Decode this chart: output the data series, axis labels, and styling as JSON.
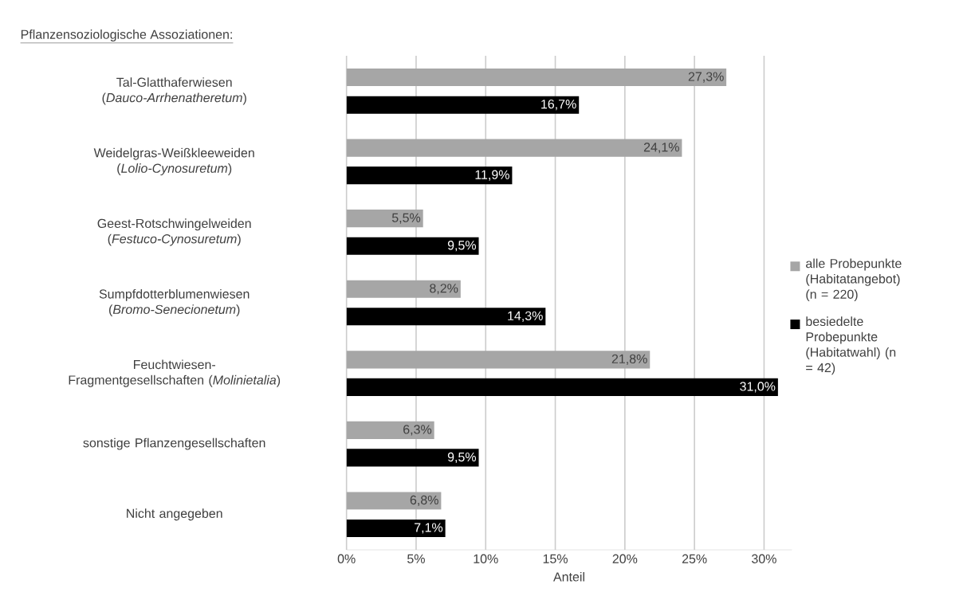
{
  "chart_data": {
    "type": "bar",
    "orientation": "horizontal",
    "title": "Pflanzensoziologische Assoziationen:",
    "xlabel": "Anteil",
    "categories": [
      "Tal-Glatthaferwiesen (*Dauco-Arrhenatheretum*)",
      "Weidelgras-Weißkleeweiden (*Lolio-Cynosuretum*)",
      "Geest-Rotschwingelweiden (*Festuco-Cynosuretum*)",
      "Sumpfdotterblumenwiesen (*Bromo-Senecionetum*)",
      "Feuchtwiesen-Fragmentgesellschaften (*Molinietalia*)",
      "sonstige Pflanzengesellschaften",
      "Nicht angegeben"
    ],
    "series": [
      {
        "name": "alle Probepunkte (Habitatangebot) (n = 220)",
        "color": "#a6a6a6",
        "values": [
          27.3,
          24.1,
          5.5,
          8.2,
          21.8,
          6.3,
          6.8
        ],
        "value_labels": [
          "27,3%",
          "24,1%",
          "5,5%",
          "8,2%",
          "21,8%",
          "6,3%",
          "6,8%"
        ]
      },
      {
        "name": "besiedelte Probepunkte (Habitatwahl) (n = 42)",
        "color": "#000000",
        "values": [
          16.7,
          11.9,
          9.5,
          14.3,
          31.0,
          9.5,
          7.1
        ],
        "value_labels": [
          "16,7%",
          "11,9%",
          "9,5%",
          "14,3%",
          "31,0%",
          "9,5%",
          "7,1%"
        ]
      }
    ],
    "xlim": [
      0,
      32
    ],
    "xticks": [
      {
        "value": 0,
        "label": "0%"
      },
      {
        "value": 5,
        "label": "5%"
      },
      {
        "value": 10,
        "label": "10%"
      },
      {
        "value": 15,
        "label": "15%"
      },
      {
        "value": 20,
        "label": "20%"
      },
      {
        "value": 25,
        "label": "25%"
      },
      {
        "value": 30,
        "label": "30%"
      }
    ],
    "grid": "x",
    "legend": "right"
  }
}
